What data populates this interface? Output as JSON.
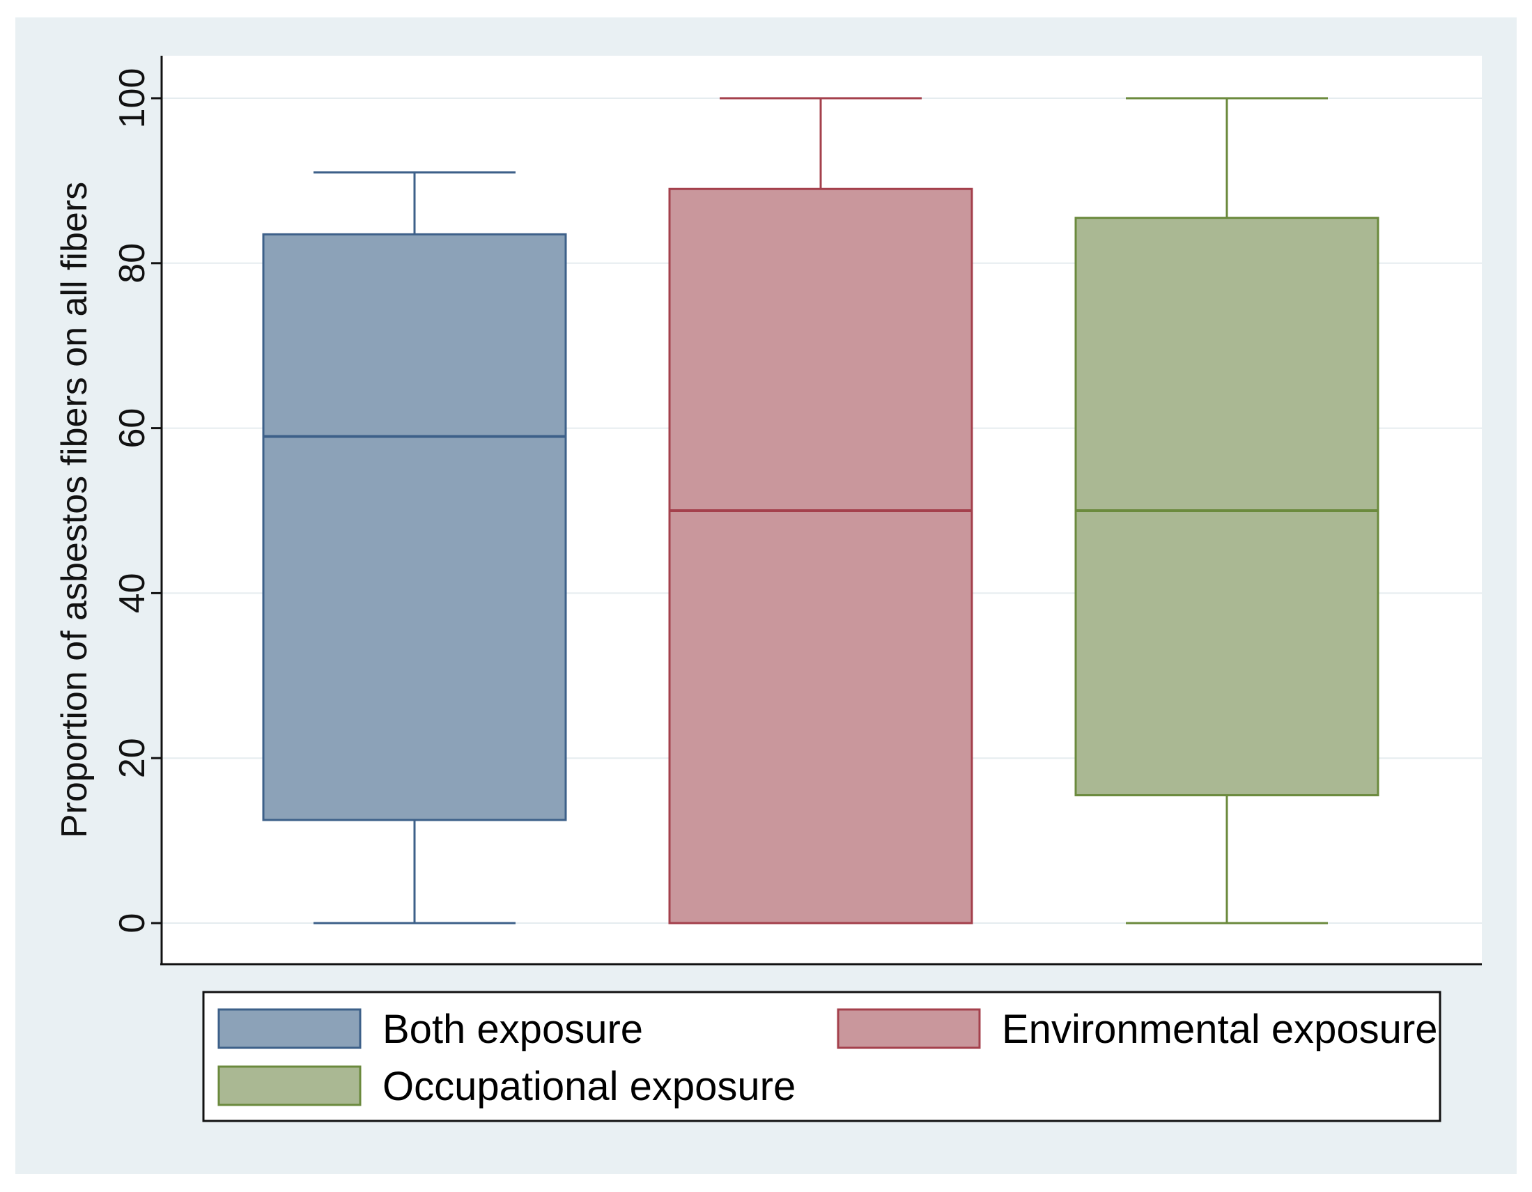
{
  "chart_data": {
    "type": "boxplot",
    "title": "",
    "xlabel": "",
    "ylabel": "Proportion of asbestos fibers on all fibers",
    "ylim": [
      -5,
      105
    ],
    "yticks": [
      0,
      20,
      40,
      60,
      80,
      100
    ],
    "grid": true,
    "legend_position": "bottom",
    "series": [
      {
        "name": "Both exposure",
        "color": "#8ca2b8",
        "stroke": "#3d6089",
        "whisker_low": 0,
        "q1": 12.5,
        "median": 59,
        "q3": 83.5,
        "whisker_high": 91
      },
      {
        "name": "Environmental exposure",
        "color": "#c9979c",
        "stroke": "#a4404c",
        "whisker_low": 0,
        "q1": 0,
        "median": 50,
        "q3": 89,
        "whisker_high": 100
      },
      {
        "name": "Occupational exposure",
        "color": "#aab893",
        "stroke": "#6b8a3d",
        "whisker_low": 0,
        "q1": 15.5,
        "median": 50,
        "q3": 85.5,
        "whisker_high": 100
      }
    ]
  }
}
